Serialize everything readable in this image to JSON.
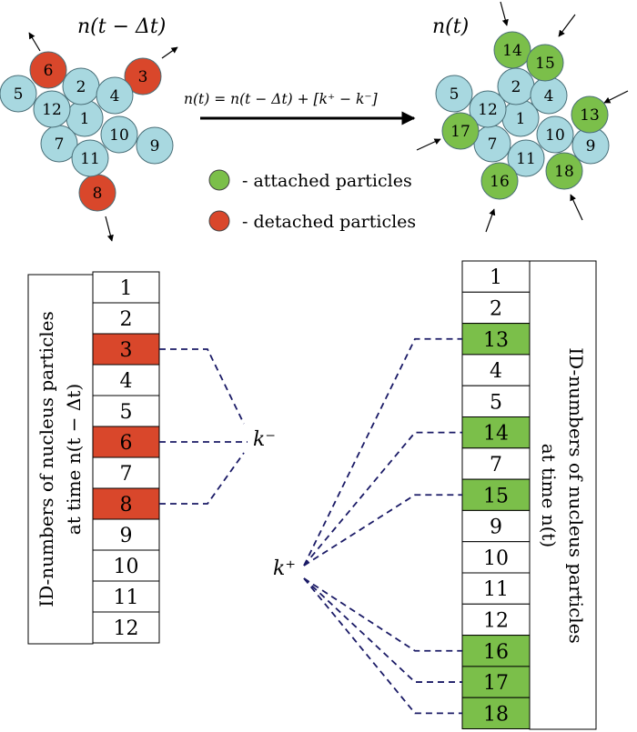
{
  "colors": {
    "blue": "#a8d8e0",
    "red": "#d9472b",
    "green": "#7bbf4a",
    "dash": "#1a1a66"
  },
  "top_left": {
    "title": "n(t − Δt)",
    "particles": [
      {
        "id": "1",
        "state": "blue"
      },
      {
        "id": "2",
        "state": "blue"
      },
      {
        "id": "3",
        "state": "red"
      },
      {
        "id": "4",
        "state": "blue"
      },
      {
        "id": "5",
        "state": "blue"
      },
      {
        "id": "6",
        "state": "red"
      },
      {
        "id": "7",
        "state": "blue"
      },
      {
        "id": "8",
        "state": "red"
      },
      {
        "id": "9",
        "state": "blue"
      },
      {
        "id": "10",
        "state": "blue"
      },
      {
        "id": "11",
        "state": "blue"
      },
      {
        "id": "12",
        "state": "blue"
      }
    ]
  },
  "top_right": {
    "title": "n(t)",
    "particles": [
      {
        "id": "1",
        "state": "blue"
      },
      {
        "id": "2",
        "state": "blue"
      },
      {
        "id": "4",
        "state": "blue"
      },
      {
        "id": "5",
        "state": "blue"
      },
      {
        "id": "7",
        "state": "blue"
      },
      {
        "id": "9",
        "state": "blue"
      },
      {
        "id": "10",
        "state": "blue"
      },
      {
        "id": "11",
        "state": "blue"
      },
      {
        "id": "12",
        "state": "blue"
      },
      {
        "id": "13",
        "state": "green"
      },
      {
        "id": "14",
        "state": "green"
      },
      {
        "id": "15",
        "state": "green"
      },
      {
        "id": "16",
        "state": "green"
      },
      {
        "id": "17",
        "state": "green"
      },
      {
        "id": "18",
        "state": "green"
      }
    ]
  },
  "equation": "n(t) = n(t − Δt) + [k⁺ − k⁻]",
  "legend": {
    "attached": "- attached particles",
    "detached": "- detached particles"
  },
  "left_table": {
    "caption_line1": "ID-numbers of nucleus particles",
    "caption_line2": "at time  n(t − Δt)",
    "rows": [
      {
        "id": "1",
        "state": "plain"
      },
      {
        "id": "2",
        "state": "plain"
      },
      {
        "id": "3",
        "state": "red"
      },
      {
        "id": "4",
        "state": "plain"
      },
      {
        "id": "5",
        "state": "plain"
      },
      {
        "id": "6",
        "state": "red"
      },
      {
        "id": "7",
        "state": "plain"
      },
      {
        "id": "8",
        "state": "red"
      },
      {
        "id": "9",
        "state": "plain"
      },
      {
        "id": "10",
        "state": "plain"
      },
      {
        "id": "11",
        "state": "plain"
      },
      {
        "id": "12",
        "state": "plain"
      }
    ]
  },
  "right_table": {
    "caption_line1": "ID-numbers of nucleus particles",
    "caption_line2": "at time  n(t)",
    "rows": [
      {
        "id": "1",
        "state": "plain"
      },
      {
        "id": "2",
        "state": "plain"
      },
      {
        "id": "13",
        "state": "green"
      },
      {
        "id": "4",
        "state": "plain"
      },
      {
        "id": "5",
        "state": "plain"
      },
      {
        "id": "14",
        "state": "green"
      },
      {
        "id": "7",
        "state": "plain"
      },
      {
        "id": "15",
        "state": "green"
      },
      {
        "id": "9",
        "state": "plain"
      },
      {
        "id": "10",
        "state": "plain"
      },
      {
        "id": "11",
        "state": "plain"
      },
      {
        "id": "12",
        "state": "plain"
      },
      {
        "id": "16",
        "state": "green"
      },
      {
        "id": "17",
        "state": "green"
      },
      {
        "id": "18",
        "state": "green"
      }
    ]
  },
  "k_minus": "k⁻",
  "k_plus": "k⁺"
}
